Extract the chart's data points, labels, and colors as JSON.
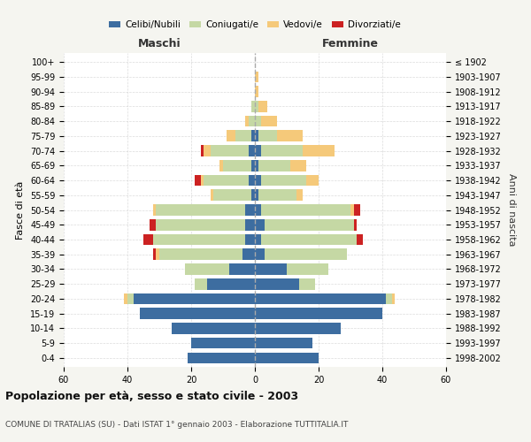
{
  "age_groups": [
    "0-4",
    "5-9",
    "10-14",
    "15-19",
    "20-24",
    "25-29",
    "30-34",
    "35-39",
    "40-44",
    "45-49",
    "50-54",
    "55-59",
    "60-64",
    "65-69",
    "70-74",
    "75-79",
    "80-84",
    "85-89",
    "90-94",
    "95-99",
    "100+"
  ],
  "birth_years": [
    "1998-2002",
    "1993-1997",
    "1988-1992",
    "1983-1987",
    "1978-1982",
    "1973-1977",
    "1968-1972",
    "1963-1967",
    "1958-1962",
    "1953-1957",
    "1948-1952",
    "1943-1947",
    "1938-1942",
    "1933-1937",
    "1928-1932",
    "1923-1927",
    "1918-1922",
    "1913-1917",
    "1908-1912",
    "1903-1907",
    "≤ 1902"
  ],
  "maschi": {
    "celibi": [
      21,
      20,
      26,
      36,
      38,
      15,
      8,
      4,
      3,
      3,
      3,
      1,
      2,
      1,
      2,
      1,
      0,
      0,
      0,
      0,
      0
    ],
    "coniugati": [
      0,
      0,
      0,
      0,
      2,
      4,
      14,
      26,
      29,
      28,
      28,
      12,
      14,
      9,
      12,
      5,
      2,
      1,
      0,
      0,
      0
    ],
    "vedovi": [
      0,
      0,
      0,
      0,
      1,
      0,
      0,
      1,
      0,
      0,
      1,
      1,
      1,
      1,
      2,
      3,
      1,
      0,
      0,
      0,
      0
    ],
    "divorziati": [
      0,
      0,
      0,
      0,
      0,
      0,
      0,
      1,
      3,
      2,
      0,
      0,
      2,
      0,
      1,
      0,
      0,
      0,
      0,
      0,
      0
    ]
  },
  "femmine": {
    "nubili": [
      20,
      18,
      27,
      40,
      41,
      14,
      10,
      3,
      2,
      3,
      2,
      1,
      2,
      1,
      2,
      1,
      0,
      0,
      0,
      0,
      0
    ],
    "coniugate": [
      0,
      0,
      0,
      0,
      2,
      5,
      13,
      26,
      30,
      28,
      28,
      12,
      14,
      10,
      13,
      6,
      2,
      1,
      0,
      0,
      0
    ],
    "vedove": [
      0,
      0,
      0,
      0,
      1,
      0,
      0,
      0,
      0,
      0,
      1,
      2,
      4,
      5,
      10,
      8,
      5,
      3,
      1,
      1,
      0
    ],
    "divorziate": [
      0,
      0,
      0,
      0,
      0,
      0,
      0,
      0,
      2,
      1,
      2,
      0,
      0,
      0,
      0,
      0,
      0,
      0,
      0,
      0,
      0
    ]
  },
  "colors": {
    "celibi": "#3d6da0",
    "coniugati": "#c5d8a4",
    "vedovi": "#f5c97a",
    "divorziati": "#cc2222"
  },
  "xlim": 60,
  "title": "Popolazione per età, sesso e stato civile - 2003",
  "subtitle": "COMUNE DI TRATALIAS (SU) - Dati ISTAT 1° gennaio 2003 - Elaborazione TUTTITALIA.IT",
  "ylabel_left": "Fasce di età",
  "ylabel_right": "Anni di nascita",
  "xlabel_left": "Maschi",
  "xlabel_right": "Femmine",
  "bg_color": "#f5f5f0",
  "plot_bg_color": "#ffffff"
}
